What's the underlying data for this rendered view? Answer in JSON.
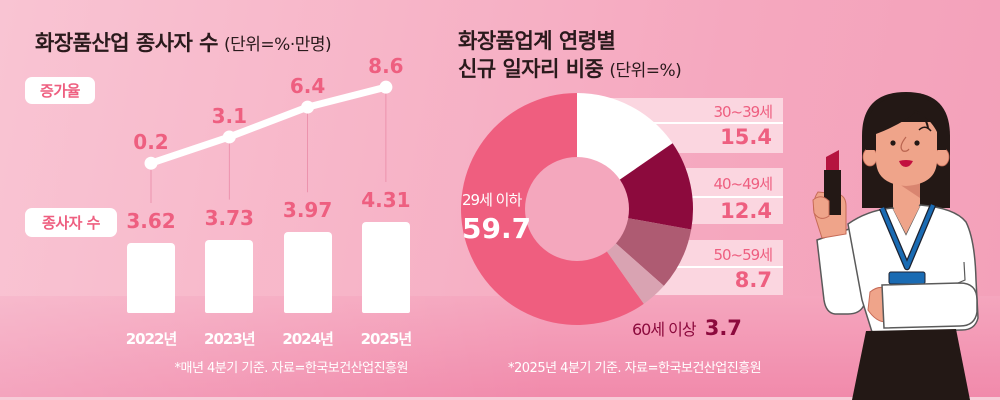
{
  "left_panel": {
    "title": "화장품산업 종사자 수",
    "unit": "(단위=%·만명)",
    "growth_label": "증가율",
    "workers_label": "종사자 수",
    "footnote": "*매년 4분기 기준. 자료=한국보건산업진흥원"
  },
  "right_panel": {
    "title_line1": "화장품업계 연령별",
    "title_line2": "신규 일자리 비중",
    "unit": "(단위=%)",
    "footnote": "*2025년 4분기 기준. 자료=한국보건산업진흥원"
  },
  "illustration": {
    "icon": "woman-holding-lipstick-illustration"
  },
  "colors": {
    "accent_pink": "#EE5F80",
    "title_text": "#2A1A1C",
    "bar_fill": "#FFFFFF",
    "line_stroke": "#FFFFFF",
    "label_maroon": "#8C0A3D",
    "age_box_bg": "#FBD6E0",
    "donut_hole": "#F4A7BD"
  },
  "chart_data": [
    {
      "type": "bar",
      "title": "화장품산업 종사자 수",
      "unit": "(단위=%·만명)",
      "categories": [
        "2022년",
        "2023년",
        "2024년",
        "2025년"
      ],
      "series": [
        {
          "name": "종사자 수",
          "unit": "만명",
          "values": [
            3.62,
            3.73,
            3.97,
            4.31
          ]
        }
      ],
      "xlabel": "",
      "ylabel": "",
      "grid": false,
      "legend": "none",
      "note": "*매년 4분기 기준. 자료=한국보건산업진흥원"
    },
    {
      "type": "line",
      "title": "화장품산업 종사자 수",
      "unit": "(단위=%·만명)",
      "categories": [
        "2022년",
        "2023년",
        "2024년",
        "2025년"
      ],
      "series": [
        {
          "name": "증가율",
          "unit": "%",
          "values": [
            0.2,
            3.1,
            6.4,
            8.6
          ]
        }
      ],
      "xlabel": "",
      "ylabel": "",
      "grid": false,
      "legend": "none"
    },
    {
      "type": "pie",
      "donut": true,
      "title": "화장품업계 연령별 신규 일자리 비중",
      "unit": "(단위=%)",
      "categories": [
        "29세 이하",
        "30~39세",
        "40~49세",
        "50~59세",
        "60세 이상"
      ],
      "values": [
        59.7,
        15.4,
        12.4,
        8.7,
        3.7
      ],
      "colors": [
        "#EF5E7F",
        "#FFFFFF",
        "#8C0A3D",
        "#AE5B72",
        "#D9A3B2"
      ],
      "legend": "labels beside slices",
      "note": "*2025년 4분기 기준. 자료=한국보건산업진흥원"
    }
  ]
}
